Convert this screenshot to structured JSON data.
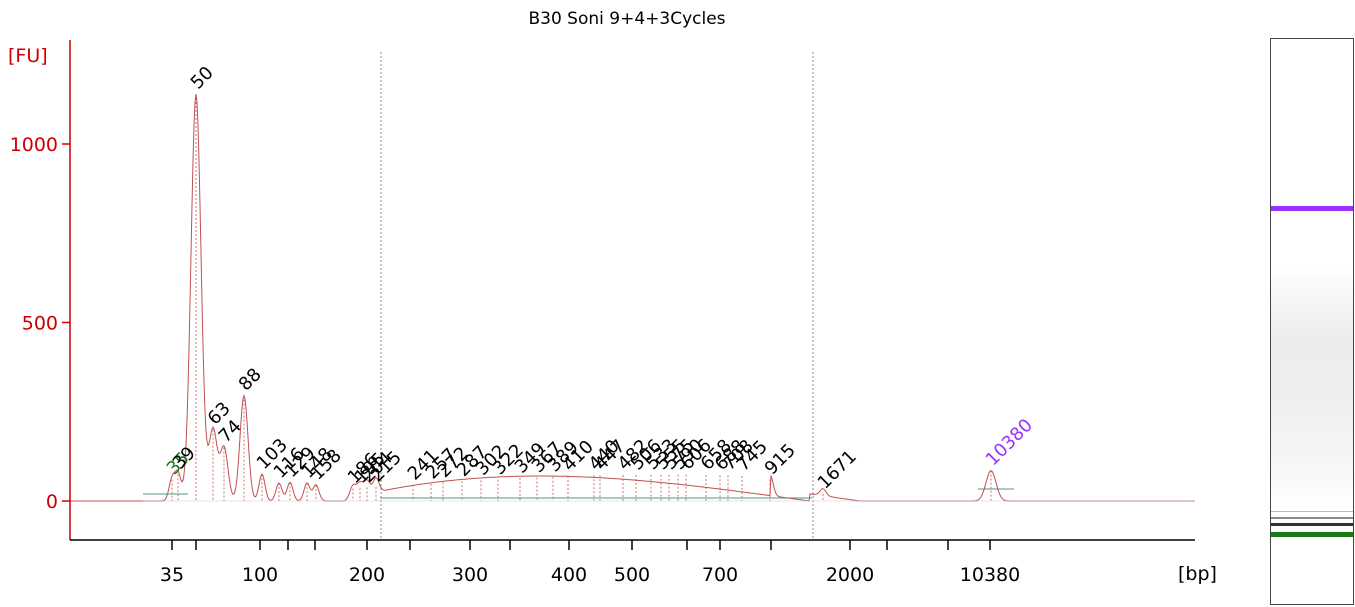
{
  "chart_data": {
    "type": "line",
    "title": "B30 Soni 9+4+3Cycles",
    "ylabel": "[FU]",
    "xlabel": "[bp]",
    "ylim": [
      -110,
      1200
    ],
    "y_ticks": [
      0,
      500,
      1000
    ],
    "x_ticks": [
      "35",
      "100",
      "200",
      "300",
      "400",
      "500",
      "700",
      "2000",
      "10380"
    ],
    "colors": {
      "trace": "#c0504d",
      "axis": "#cc0000",
      "lower_marker": "#1a7a1a",
      "upper_marker": "#9933ff",
      "baseline": "#4a9a8a"
    },
    "peaks": [
      {
        "label": "35",
        "height": 60,
        "kind": "lower_marker"
      },
      {
        "label": "39",
        "height": 75,
        "kind": "peak"
      },
      {
        "label": "50",
        "height": 1140,
        "kind": "peak"
      },
      {
        "label": "63",
        "height": 200,
        "kind": "peak"
      },
      {
        "label": "74",
        "height": 150,
        "kind": "peak"
      },
      {
        "label": "88",
        "height": 295,
        "kind": "peak"
      },
      {
        "label": "103",
        "height": 75,
        "kind": "peak"
      },
      {
        "label": "116",
        "height": 50,
        "kind": "peak"
      },
      {
        "label": "129",
        "height": 52,
        "kind": "peak"
      },
      {
        "label": "148",
        "height": 50,
        "kind": "peak"
      },
      {
        "label": "158",
        "height": 45,
        "kind": "peak"
      },
      {
        "label": "186",
        "height": 35,
        "kind": "peak"
      },
      {
        "label": "195",
        "height": 36,
        "kind": "peak"
      },
      {
        "label": "204",
        "height": 38,
        "kind": "peak"
      },
      {
        "label": "215",
        "height": 40,
        "kind": "peak"
      },
      {
        "label": "241",
        "height": 45,
        "kind": "peak"
      },
      {
        "label": "257",
        "height": 48,
        "kind": "peak"
      },
      {
        "label": "272",
        "height": 52,
        "kind": "peak"
      },
      {
        "label": "287",
        "height": 55,
        "kind": "peak"
      },
      {
        "label": "302",
        "height": 58,
        "kind": "peak"
      },
      {
        "label": "322",
        "height": 60,
        "kind": "peak"
      },
      {
        "label": "349",
        "height": 64,
        "kind": "peak"
      },
      {
        "label": "367",
        "height": 66,
        "kind": "peak"
      },
      {
        "label": "389",
        "height": 68,
        "kind": "peak"
      },
      {
        "label": "410",
        "height": 70,
        "kind": "peak"
      },
      {
        "label": "440",
        "height": 72,
        "kind": "peak"
      },
      {
        "label": "447",
        "height": 72,
        "kind": "peak"
      },
      {
        "label": "482",
        "height": 73,
        "kind": "peak"
      },
      {
        "label": "506",
        "height": 73,
        "kind": "peak"
      },
      {
        "label": "533",
        "height": 74,
        "kind": "peak"
      },
      {
        "label": "555",
        "height": 74,
        "kind": "peak"
      },
      {
        "label": "575",
        "height": 74,
        "kind": "peak"
      },
      {
        "label": "590",
        "height": 74,
        "kind": "peak"
      },
      {
        "label": "606",
        "height": 74,
        "kind": "peak"
      },
      {
        "label": "658",
        "height": 73,
        "kind": "peak"
      },
      {
        "label": "688",
        "height": 72,
        "kind": "peak"
      },
      {
        "label": "708",
        "height": 72,
        "kind": "peak"
      },
      {
        "label": "745",
        "height": 70,
        "kind": "peak"
      },
      {
        "label": "915",
        "height": 60,
        "kind": "peak"
      },
      {
        "label": "1671",
        "height": 20,
        "kind": "peak"
      },
      {
        "label": "10380",
        "height": 85,
        "kind": "upper_marker"
      }
    ]
  }
}
